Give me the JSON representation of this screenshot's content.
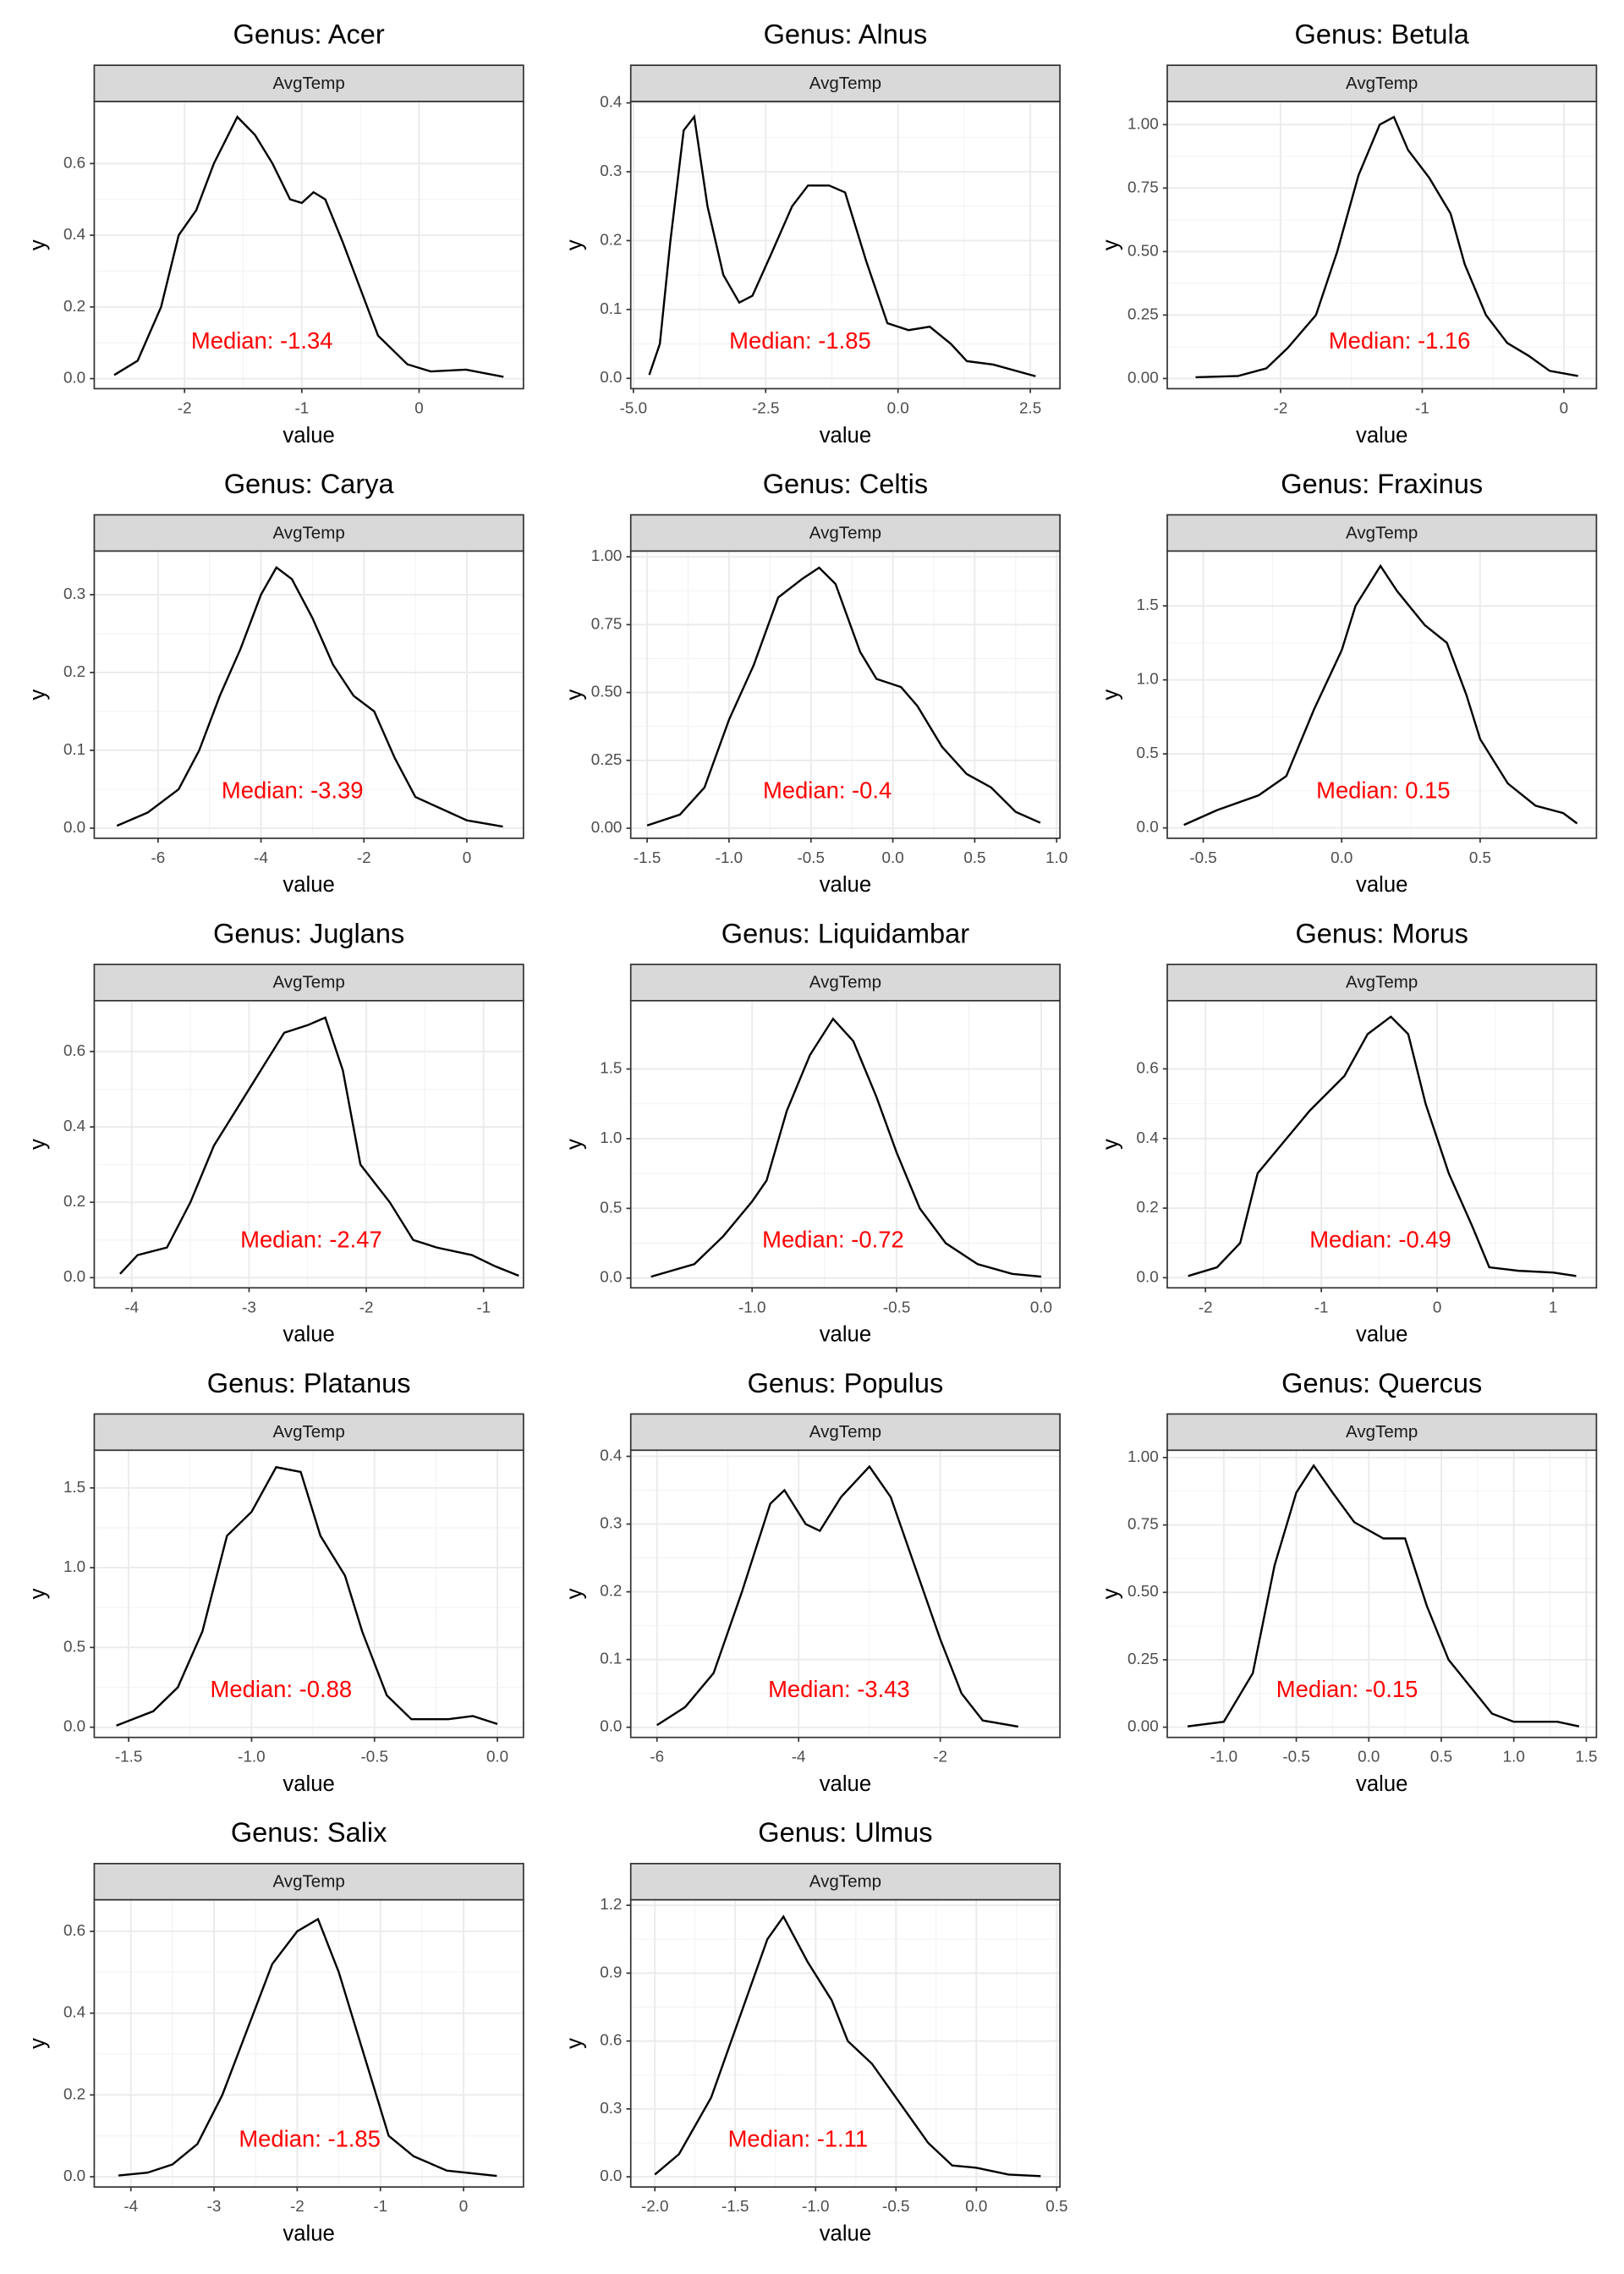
{
  "chart_data": [
    {
      "type": "line",
      "title": "Genus: Acer",
      "strip": "AvgTemp",
      "xlabel": "value",
      "ylabel": "y",
      "color": "#000000",
      "grid": true,
      "minor_grid": true,
      "x": [
        -2.6,
        -2.4,
        -2.2,
        -2.05,
        -1.9,
        -1.75,
        -1.55,
        -1.4,
        -1.25,
        -1.1,
        -1.0,
        -0.9,
        -0.8,
        -0.65,
        -0.5,
        -0.35,
        -0.1,
        0.1,
        0.4,
        0.72
      ],
      "values": [
        0.01,
        0.05,
        0.2,
        0.4,
        0.47,
        0.6,
        0.73,
        0.68,
        0.6,
        0.5,
        0.49,
        0.52,
        0.5,
        0.38,
        0.25,
        0.12,
        0.04,
        0.02,
        0.025,
        0.005
      ],
      "xlim": [
        -2.77,
        0.89
      ],
      "ylim": [
        -0.028,
        0.773
      ],
      "xticks": [
        -2,
        -1,
        0
      ],
      "yticks": [
        {
          "value": 0,
          "label": "0.0"
        },
        0.2,
        0.4,
        0.6
      ],
      "annotations": [
        {
          "x": -1.34,
          "text": "Median: -1.34"
        }
      ]
    },
    {
      "type": "line",
      "title": "Genus: Alnus",
      "strip": "AvgTemp",
      "xlabel": "value",
      "ylabel": "y",
      "color": "#000000",
      "grid": true,
      "minor_grid": true,
      "x": [
        -4.7,
        -4.5,
        -4.3,
        -4.05,
        -3.85,
        -3.6,
        -3.3,
        -3.0,
        -2.75,
        -2.4,
        -2.0,
        -1.7,
        -1.3,
        -1.0,
        -0.6,
        -0.2,
        0.2,
        0.6,
        1.0,
        1.3,
        1.8,
        2.6
      ],
      "values": [
        0.005,
        0.05,
        0.2,
        0.36,
        0.38,
        0.25,
        0.15,
        0.11,
        0.12,
        0.18,
        0.25,
        0.28,
        0.28,
        0.27,
        0.17,
        0.08,
        0.07,
        0.075,
        0.05,
        0.025,
        0.02,
        0.003
      ],
      "xlim": [
        -5.05,
        3.06
      ],
      "ylim": [
        -0.015,
        0.402
      ],
      "xticks": [
        {
          "value": -5,
          "label": "-5.0"
        },
        -2.5,
        {
          "value": 0,
          "label": "0.0"
        },
        2.5
      ],
      "yticks": [
        {
          "value": 0,
          "label": "0.0"
        },
        0.1,
        0.2,
        0.3,
        0.4
      ],
      "annotations": [
        {
          "x": -1.85,
          "text": "Median: -1.85"
        }
      ]
    },
    {
      "type": "line",
      "title": "Genus: Betula",
      "strip": "AvgTemp",
      "xlabel": "value",
      "ylabel": "y",
      "color": "#000000",
      "grid": true,
      "minor_grid": true,
      "x": [
        -2.6,
        -2.3,
        -2.1,
        -1.95,
        -1.75,
        -1.6,
        -1.45,
        -1.3,
        -1.2,
        -1.1,
        -0.95,
        -0.8,
        -0.7,
        -0.55,
        -0.4,
        -0.25,
        -0.1,
        0.1
      ],
      "values": [
        0.005,
        0.01,
        0.04,
        0.12,
        0.25,
        0.5,
        0.8,
        1.0,
        1.03,
        0.9,
        0.79,
        0.65,
        0.45,
        0.25,
        0.14,
        0.09,
        0.03,
        0.01
      ],
      "xlim": [
        -2.8,
        0.23
      ],
      "ylim": [
        -0.04,
        1.091
      ],
      "xticks": [
        -2,
        -1,
        0
      ],
      "yticks": [
        {
          "value": 0,
          "label": "0.00"
        },
        0.25,
        {
          "value": 0.5,
          "label": "0.50"
        },
        0.75,
        {
          "value": 1,
          "label": "1.00"
        }
      ],
      "annotations": [
        {
          "x": -1.16,
          "text": "Median: -1.16"
        }
      ]
    },
    {
      "type": "line",
      "title": "Genus: Carya",
      "strip": "AvgTemp",
      "xlabel": "value",
      "ylabel": "y",
      "color": "#000000",
      "grid": true,
      "minor_grid": true,
      "x": [
        -6.8,
        -6.2,
        -5.6,
        -5.2,
        -4.8,
        -4.4,
        -4.0,
        -3.7,
        -3.4,
        -3.0,
        -2.6,
        -2.2,
        -1.8,
        -1.4,
        -1.0,
        -0.5,
        0,
        0.7
      ],
      "values": [
        0.003,
        0.02,
        0.05,
        0.1,
        0.17,
        0.23,
        0.3,
        0.335,
        0.32,
        0.27,
        0.21,
        0.17,
        0.15,
        0.09,
        0.04,
        0.025,
        0.01,
        0.002
      ],
      "xlim": [
        -7.24,
        1.1
      ],
      "ylim": [
        -0.013,
        0.356
      ],
      "xticks": [
        -6,
        -4,
        -2,
        0
      ],
      "yticks": [
        {
          "value": 0,
          "label": "0.0"
        },
        0.1,
        0.2,
        0.3
      ],
      "annotations": [
        {
          "x": -3.39,
          "text": "Median: -3.39"
        }
      ]
    },
    {
      "type": "line",
      "title": "Genus: Celtis",
      "strip": "AvgTemp",
      "xlabel": "value",
      "ylabel": "y",
      "color": "#000000",
      "grid": true,
      "minor_grid": true,
      "x": [
        -1.5,
        -1.3,
        -1.15,
        -1.0,
        -0.85,
        -0.7,
        -0.55,
        -0.45,
        -0.35,
        -0.2,
        -0.1,
        0.05,
        0.15,
        0.3,
        0.45,
        0.6,
        0.75,
        0.9
      ],
      "values": [
        0.01,
        0.05,
        0.15,
        0.4,
        0.6,
        0.85,
        0.92,
        0.96,
        0.9,
        0.65,
        0.55,
        0.52,
        0.45,
        0.3,
        0.2,
        0.15,
        0.06,
        0.02
      ],
      "xlim": [
        -1.6,
        1.02
      ],
      "ylim": [
        -0.037,
        1.021
      ],
      "xticks": [
        -1.5,
        {
          "value": -1,
          "label": "-1.0"
        },
        -0.5,
        {
          "value": 0,
          "label": "0.0"
        },
        0.5,
        {
          "value": 1,
          "label": "1.0"
        }
      ],
      "yticks": [
        {
          "value": 0,
          "label": "0.00"
        },
        0.25,
        {
          "value": 0.5,
          "label": "0.50"
        },
        0.75,
        {
          "value": 1,
          "label": "1.00"
        }
      ],
      "annotations": [
        {
          "x": -0.4,
          "text": "Median: -0.4"
        }
      ]
    },
    {
      "type": "line",
      "title": "Genus: Fraxinus",
      "strip": "AvgTemp",
      "xlabel": "value",
      "ylabel": "y",
      "color": "#000000",
      "grid": true,
      "minor_grid": true,
      "x": [
        -0.57,
        -0.45,
        -0.3,
        -0.2,
        -0.1,
        0.0,
        0.05,
        0.14,
        0.2,
        0.3,
        0.38,
        0.45,
        0.5,
        0.6,
        0.7,
        0.8,
        0.85
      ],
      "values": [
        0.02,
        0.12,
        0.22,
        0.35,
        0.8,
        1.2,
        1.5,
        1.77,
        1.6,
        1.37,
        1.25,
        0.9,
        0.6,
        0.3,
        0.15,
        0.1,
        0.03
      ],
      "xlim": [
        -0.63,
        0.92
      ],
      "ylim": [
        -0.07,
        1.87
      ],
      "xticks": [
        -0.5,
        {
          "value": 0,
          "label": "0.0"
        },
        0.5
      ],
      "yticks": [
        {
          "value": 0,
          "label": "0.0"
        },
        0.5,
        {
          "value": 1,
          "label": "1.0"
        },
        1.5
      ],
      "annotations": [
        {
          "x": 0.15,
          "text": "Median: 0.15"
        }
      ]
    },
    {
      "type": "line",
      "title": "Genus: Juglans",
      "strip": "AvgTemp",
      "xlabel": "value",
      "ylabel": "y",
      "color": "#000000",
      "grid": true,
      "minor_grid": true,
      "x": [
        -4.1,
        -3.95,
        -3.7,
        -3.5,
        -3.3,
        -3.1,
        -2.9,
        -2.7,
        -2.5,
        -2.35,
        -2.2,
        -2.05,
        -1.8,
        -1.6,
        -1.4,
        -1.1,
        -0.9,
        -0.7
      ],
      "values": [
        0.01,
        0.06,
        0.08,
        0.2,
        0.35,
        0.45,
        0.55,
        0.65,
        0.67,
        0.69,
        0.55,
        0.3,
        0.2,
        0.1,
        0.08,
        0.06,
        0.03,
        0.005
      ],
      "xlim": [
        -4.32,
        -0.66
      ],
      "ylim": [
        -0.027,
        0.735
      ],
      "xticks": [
        -4,
        -3,
        -2,
        -1
      ],
      "yticks": [
        {
          "value": 0,
          "label": "0.0"
        },
        0.2,
        0.4,
        0.6
      ],
      "annotations": [
        {
          "x": -2.47,
          "text": "Median: -2.47"
        }
      ]
    },
    {
      "type": "line",
      "title": "Genus: Liquidambar",
      "strip": "AvgTemp",
      "xlabel": "value",
      "ylabel": "y",
      "color": "#000000",
      "grid": true,
      "minor_grid": true,
      "x": [
        -1.35,
        -1.2,
        -1.1,
        -1.0,
        -0.95,
        -0.88,
        -0.8,
        -0.72,
        -0.65,
        -0.57,
        -0.5,
        -0.42,
        -0.33,
        -0.22,
        -0.1,
        0.0
      ],
      "values": [
        0.01,
        0.1,
        0.3,
        0.55,
        0.7,
        1.2,
        1.6,
        1.86,
        1.7,
        1.3,
        0.9,
        0.5,
        0.25,
        0.1,
        0.03,
        0.01
      ],
      "xlim": [
        -1.42,
        0.065
      ],
      "ylim": [
        -0.07,
        1.99
      ],
      "xticks": [
        {
          "value": -1,
          "label": "-1.0"
        },
        -0.5,
        {
          "value": 0,
          "label": "0.0"
        }
      ],
      "yticks": [
        {
          "value": 0,
          "label": "0.0"
        },
        0.5,
        {
          "value": 1,
          "label": "1.0"
        },
        1.5
      ],
      "annotations": [
        {
          "x": -0.72,
          "text": "Median: -0.72"
        }
      ]
    },
    {
      "type": "line",
      "title": "Genus: Morus",
      "strip": "AvgTemp",
      "xlabel": "value",
      "ylabel": "y",
      "color": "#000000",
      "grid": true,
      "minor_grid": true,
      "x": [
        -2.15,
        -1.9,
        -1.7,
        -1.55,
        -1.3,
        -1.1,
        -0.8,
        -0.6,
        -0.4,
        -0.25,
        -0.1,
        0.1,
        0.3,
        0.45,
        0.7,
        1.0,
        1.2
      ],
      "values": [
        0.005,
        0.03,
        0.1,
        0.3,
        0.4,
        0.48,
        0.58,
        0.7,
        0.75,
        0.7,
        0.5,
        0.3,
        0.15,
        0.03,
        0.02,
        0.015,
        0.005
      ],
      "xlim": [
        -2.33,
        1.375
      ],
      "ylim": [
        -0.029,
        0.796
      ],
      "xticks": [
        -2,
        -1,
        0,
        1
      ],
      "yticks": [
        {
          "value": 0,
          "label": "0.0"
        },
        0.2,
        0.4,
        0.6
      ],
      "annotations": [
        {
          "x": -0.49,
          "text": "Median: -0.49"
        }
      ]
    },
    {
      "type": "line",
      "title": "Genus: Platanus",
      "strip": "AvgTemp",
      "xlabel": "value",
      "ylabel": "y",
      "color": "#000000",
      "grid": true,
      "minor_grid": true,
      "x": [
        -1.55,
        -1.4,
        -1.3,
        -1.2,
        -1.1,
        -1.0,
        -0.9,
        -0.8,
        -0.72,
        -0.62,
        -0.55,
        -0.45,
        -0.35,
        -0.2,
        -0.1,
        0.0
      ],
      "values": [
        0.01,
        0.1,
        0.25,
        0.6,
        1.2,
        1.35,
        1.63,
        1.6,
        1.2,
        0.95,
        0.6,
        0.2,
        0.05,
        0.05,
        0.07,
        0.02
      ],
      "xlim": [
        -1.64,
        0.106
      ],
      "ylim": [
        -0.064,
        1.736
      ],
      "xticks": [
        -1.5,
        {
          "value": -1,
          "label": "-1.0"
        },
        -0.5,
        {
          "value": 0,
          "label": "0.0"
        }
      ],
      "yticks": [
        {
          "value": 0,
          "label": "0.0"
        },
        0.5,
        {
          "value": 1,
          "label": "1.0"
        },
        1.5
      ],
      "annotations": [
        {
          "x": -0.88,
          "text": "Median: -0.88"
        }
      ]
    },
    {
      "type": "line",
      "title": "Genus: Populus",
      "strip": "AvgTemp",
      "xlabel": "value",
      "ylabel": "y",
      "color": "#000000",
      "grid": true,
      "minor_grid": true,
      "x": [
        -6.0,
        -5.6,
        -5.2,
        -4.8,
        -4.4,
        -4.2,
        -3.9,
        -3.7,
        -3.4,
        -3.0,
        -2.7,
        -2.3,
        -2.0,
        -1.7,
        -1.4,
        -0.9
      ],
      "values": [
        0.003,
        0.03,
        0.08,
        0.2,
        0.33,
        0.35,
        0.3,
        0.29,
        0.34,
        0.385,
        0.34,
        0.22,
        0.13,
        0.05,
        0.01,
        0.001
      ],
      "xlim": [
        -6.37,
        -0.31
      ],
      "ylim": [
        -0.015,
        0.409
      ],
      "xticks": [
        -6,
        -4,
        -2
      ],
      "yticks": [
        {
          "value": 0,
          "label": "0.0"
        },
        0.1,
        0.2,
        0.3,
        0.4
      ],
      "annotations": [
        {
          "x": -3.43,
          "text": "Median: -3.43"
        }
      ]
    },
    {
      "type": "line",
      "title": "Genus: Quercus",
      "strip": "AvgTemp",
      "xlabel": "value",
      "ylabel": "y",
      "color": "#000000",
      "grid": true,
      "minor_grid": true,
      "x": [
        -1.25,
        -1.0,
        -0.8,
        -0.65,
        -0.5,
        -0.38,
        -0.25,
        -0.1,
        0.1,
        0.25,
        0.4,
        0.55,
        0.7,
        0.85,
        1.0,
        1.3,
        1.45
      ],
      "values": [
        0.003,
        0.02,
        0.2,
        0.6,
        0.87,
        0.97,
        0.87,
        0.76,
        0.7,
        0.7,
        0.45,
        0.25,
        0.15,
        0.05,
        0.02,
        0.02,
        0.003
      ],
      "xlim": [
        -1.39,
        1.57
      ],
      "ylim": [
        -0.038,
        1.027
      ],
      "xticks": [
        {
          "value": -1,
          "label": "-1.0"
        },
        -0.5,
        {
          "value": 0,
          "label": "0.0"
        },
        0.5,
        {
          "value": 1,
          "label": "1.0"
        },
        1.5
      ],
      "yticks": [
        {
          "value": 0,
          "label": "0.00"
        },
        0.25,
        {
          "value": 0.5,
          "label": "0.50"
        },
        0.75,
        {
          "value": 1,
          "label": "1.00"
        }
      ],
      "annotations": [
        {
          "x": -0.15,
          "text": "Median: -0.15"
        }
      ]
    },
    {
      "type": "line",
      "title": "Genus: Salix",
      "strip": "AvgTemp",
      "xlabel": "value",
      "ylabel": "y",
      "color": "#000000",
      "grid": true,
      "minor_grid": true,
      "x": [
        -4.15,
        -3.8,
        -3.5,
        -3.2,
        -2.9,
        -2.6,
        -2.3,
        -2.0,
        -1.75,
        -1.5,
        -1.2,
        -0.9,
        -0.6,
        -0.2,
        0.4
      ],
      "values": [
        0.003,
        0.01,
        0.03,
        0.08,
        0.2,
        0.36,
        0.52,
        0.6,
        0.63,
        0.5,
        0.3,
        0.1,
        0.05,
        0.015,
        0.002
      ],
      "xlim": [
        -4.44,
        0.72
      ],
      "ylim": [
        -0.025,
        0.677
      ],
      "xticks": [
        -4,
        -3,
        -2,
        -1,
        0
      ],
      "yticks": [
        {
          "value": 0,
          "label": "0.0"
        },
        0.2,
        0.4,
        0.6
      ],
      "annotations": [
        {
          "x": -1.85,
          "text": "Median: -1.85"
        }
      ]
    },
    {
      "type": "line",
      "title": "Genus: Ulmus",
      "strip": "AvgTemp",
      "xlabel": "value",
      "ylabel": "y",
      "color": "#000000",
      "grid": true,
      "minor_grid": true,
      "x": [
        -2.0,
        -1.85,
        -1.65,
        -1.45,
        -1.3,
        -1.2,
        -1.05,
        -0.9,
        -0.8,
        -0.65,
        -0.45,
        -0.3,
        -0.15,
        0.0,
        0.2,
        0.4
      ],
      "values": [
        0.01,
        0.1,
        0.35,
        0.75,
        1.05,
        1.15,
        0.95,
        0.78,
        0.6,
        0.5,
        0.3,
        0.15,
        0.05,
        0.04,
        0.01,
        0.003
      ],
      "xlim": [
        -2.15,
        0.52
      ],
      "ylim": [
        -0.045,
        1.224
      ],
      "xticks": [
        {
          "value": -2,
          "label": "-2.0"
        },
        -1.5,
        {
          "value": -1,
          "label": "-1.0"
        },
        -0.5,
        {
          "value": 0,
          "label": "0.0"
        },
        0.5
      ],
      "yticks": [
        {
          "value": 0,
          "label": "0.0"
        },
        0.3,
        0.6,
        0.9,
        1.2
      ],
      "annotations": [
        {
          "x": -1.11,
          "text": "Median: -1.11"
        }
      ]
    }
  ]
}
